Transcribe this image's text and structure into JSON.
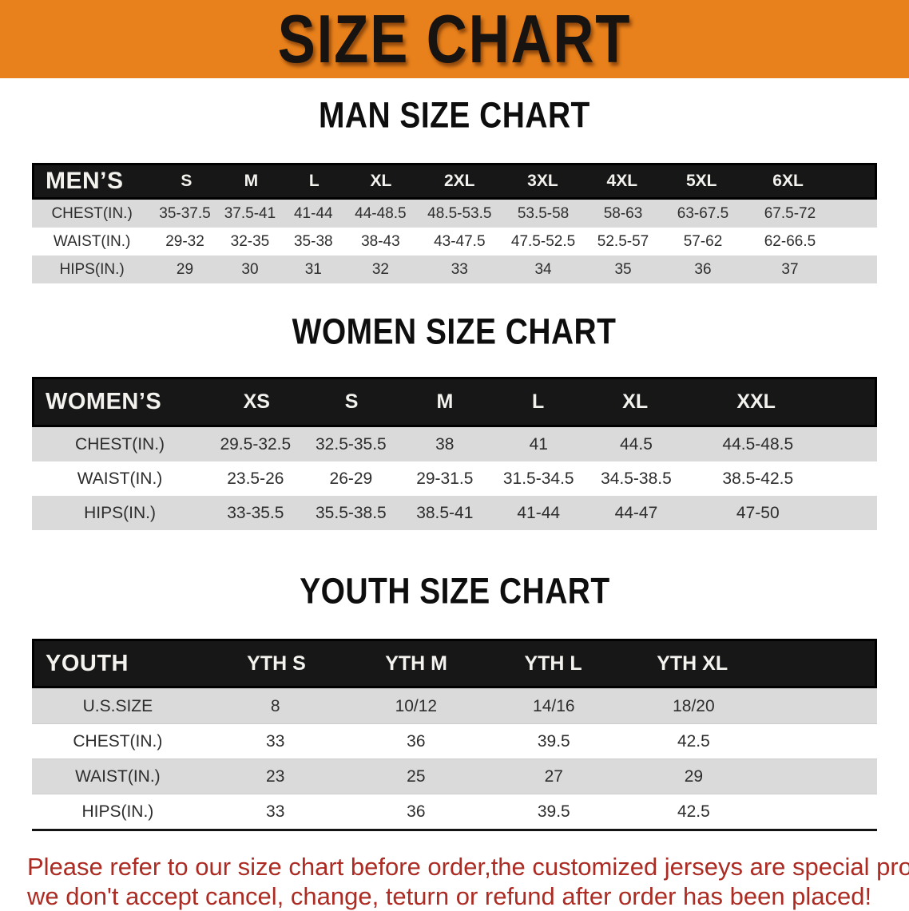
{
  "banner": {
    "title": "SIZE CHART"
  },
  "men": {
    "heading": "MAN SIZE CHART",
    "corner": "MEN’S",
    "sizes": [
      "S",
      "M",
      "L",
      "XL",
      "2XL",
      "3XL",
      "4XL",
      "5XL",
      "6XL"
    ],
    "rows": [
      {
        "label": "CHEST(IN.)",
        "values": [
          "35-37.5",
          "37.5-41",
          "41-44",
          "44-48.5",
          "48.5-53.5",
          "53.5-58",
          "58-63",
          "63-67.5",
          "67.5-72"
        ]
      },
      {
        "label": "WAIST(IN.)",
        "values": [
          "29-32",
          "32-35",
          "35-38",
          "38-43",
          "43-47.5",
          "47.5-52.5",
          "52.5-57",
          "57-62",
          "62-66.5"
        ]
      },
      {
        "label": "HIPS(IN.)",
        "values": [
          "29",
          "30",
          "31",
          "32",
          "33",
          "34",
          "35",
          "36",
          "37"
        ]
      }
    ]
  },
  "women": {
    "heading": "WOMEN SIZE CHART",
    "corner": "WOMEN’S",
    "sizes": [
      "XS",
      "S",
      "M",
      "L",
      "XL",
      "XXL"
    ],
    "rows": [
      {
        "label": "CHEST(IN.)",
        "values": [
          "29.5-32.5",
          "32.5-35.5",
          "38",
          "41",
          "44.5",
          "44.5-48.5"
        ]
      },
      {
        "label": "WAIST(IN.)",
        "values": [
          "23.5-26",
          "26-29",
          "29-31.5",
          "31.5-34.5",
          "34.5-38.5",
          "38.5-42.5"
        ]
      },
      {
        "label": "HIPS(IN.)",
        "values": [
          "33-35.5",
          "35.5-38.5",
          "38.5-41",
          "41-44",
          "44-47",
          "47-50"
        ]
      }
    ]
  },
  "youth": {
    "heading": "YOUTH SIZE CHART",
    "corner": "YOUTH",
    "sizes": [
      "YTH S",
      "YTH M",
      "YTH L",
      "YTH XL"
    ],
    "rows": [
      {
        "label": "U.S.SIZE",
        "values": [
          "8",
          "10/12",
          "14/16",
          "18/20"
        ]
      },
      {
        "label": "CHEST(IN.)",
        "values": [
          "33",
          "36",
          "39.5",
          "42.5"
        ]
      },
      {
        "label": "WAIST(IN.)",
        "values": [
          "23",
          "25",
          "27",
          "29"
        ]
      },
      {
        "label": "HIPS(IN.)",
        "values": [
          "33",
          "36",
          "39.5",
          "42.5"
        ]
      }
    ]
  },
  "disclaimer": {
    "line1": "Please refer to our size chart before order,the customized jerseys are special products,",
    "line2": "we don't accept cancel, change, teturn or refund after order has been placed!"
  },
  "colors": {
    "banner_bg": "#E8811B",
    "header_bar": "#171717",
    "row_gray": "#DADADA",
    "disclaimer_red": "#AC2B23"
  }
}
